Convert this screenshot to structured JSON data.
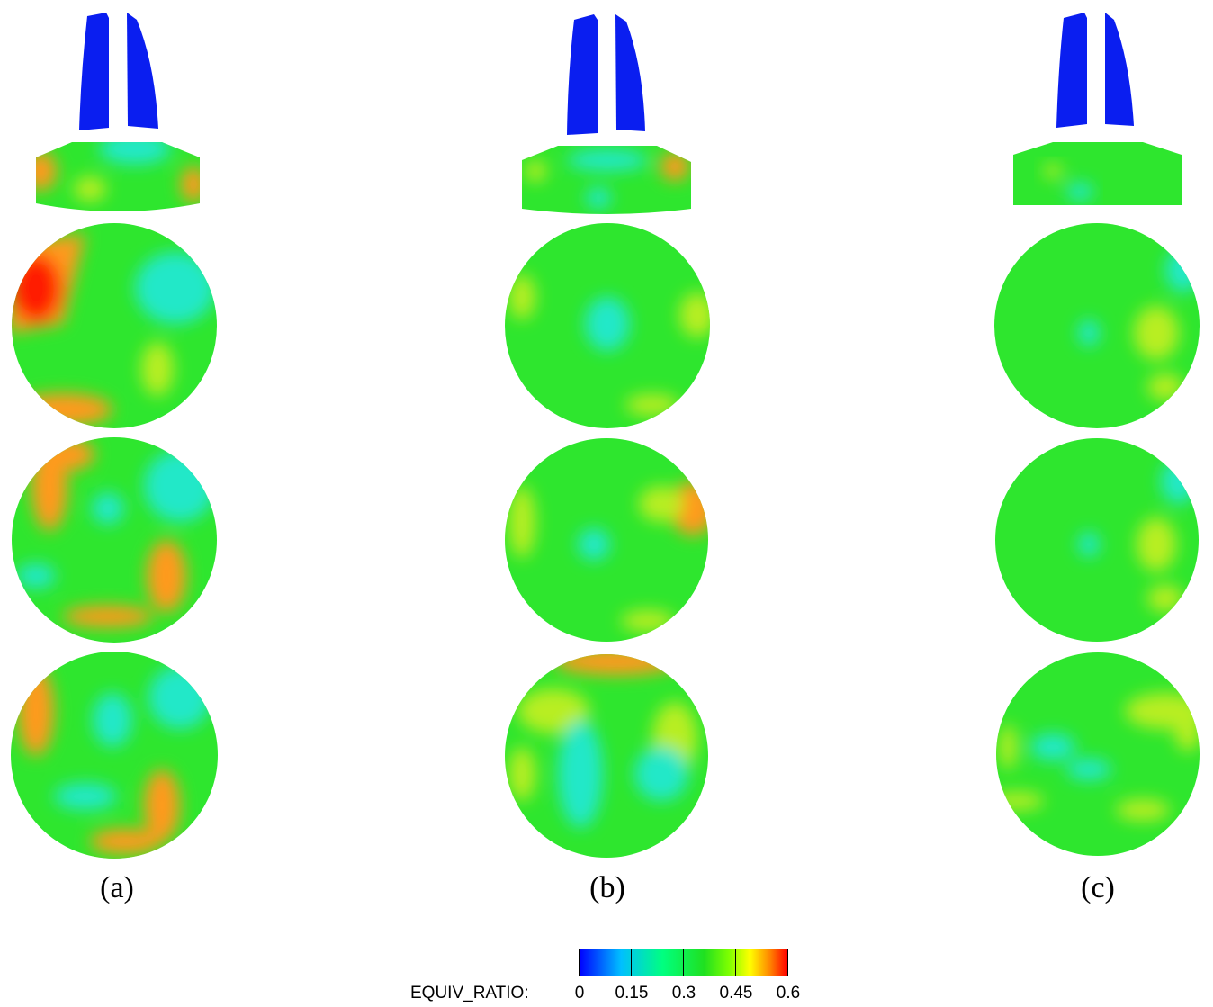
{
  "panels": [
    {
      "label": "(a)"
    },
    {
      "label": "(b)"
    },
    {
      "label": "(c)"
    }
  ],
  "legend": {
    "title": "EQUIV_RATIO:",
    "ticks": [
      "0",
      "0.15",
      "0.3",
      "0.45",
      "0.6"
    ],
    "colormap": [
      "#0000ff",
      "#00bfff",
      "#00ff80",
      "#20e020",
      "#7fff00",
      "#ffff00",
      "#ff8000",
      "#ff0000"
    ]
  },
  "colors": {
    "port": "#0a1ef0",
    "base_field": "#2ee62e",
    "lean": "#23e8c8",
    "mid_rich": "#b8ee20",
    "rich": "#ff9a1a",
    "very_rich": "#ff1a00"
  }
}
